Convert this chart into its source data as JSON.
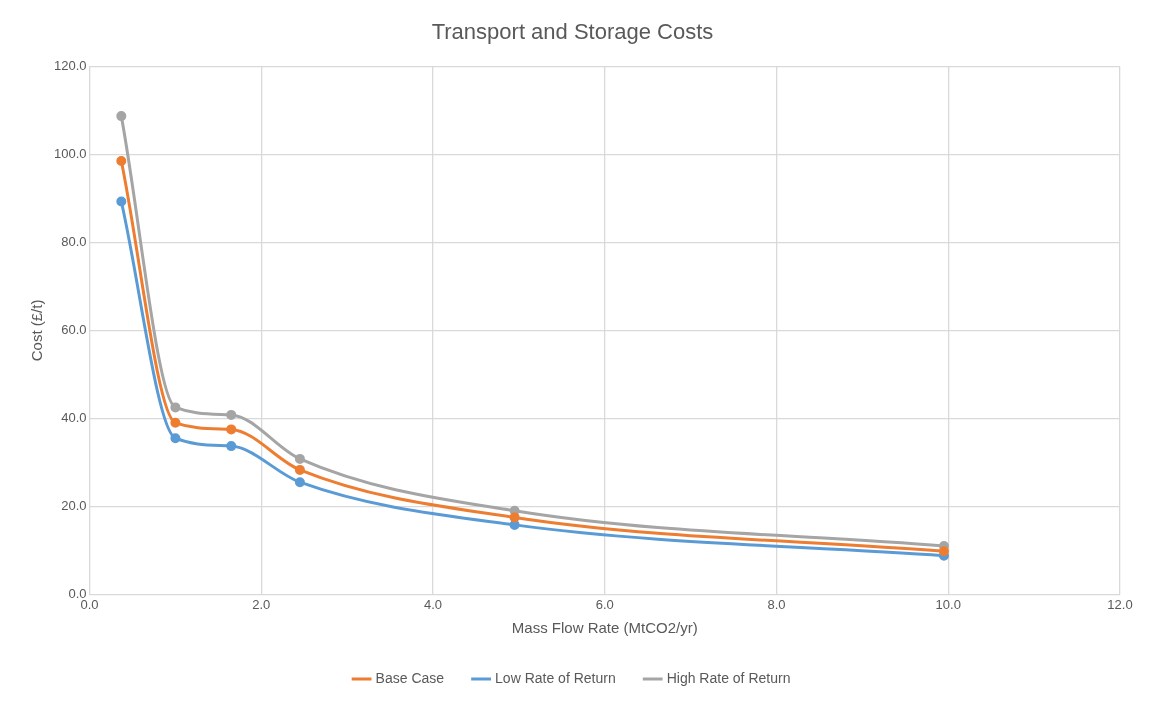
{
  "chart_data": {
    "type": "line",
    "title": "Transport and Storage Costs",
    "xlabel": "Mass Flow Rate (MtCO2/yr)",
    "ylabel": "Cost (£/t)",
    "x": [
      0.37,
      1.0,
      1.65,
      2.45,
      4.95,
      9.95
    ],
    "series": [
      {
        "name": "Base Case",
        "color": "#ed7d31",
        "values": [
          98.5,
          39.0,
          37.5,
          28.3,
          17.5,
          9.8
        ]
      },
      {
        "name": "Low Rate of Return",
        "color": "#5b9bd5",
        "values": [
          89.3,
          35.5,
          33.7,
          25.5,
          15.8,
          8.8
        ]
      },
      {
        "name": "High Rate of Return",
        "color": "#a5a5a5",
        "values": [
          108.7,
          42.5,
          40.8,
          30.8,
          19.0,
          11.0
        ]
      }
    ],
    "xlim": [
      0,
      12
    ],
    "xticks": [
      {
        "value": 0,
        "label": "0.0"
      },
      {
        "value": 2,
        "label": "2.0"
      },
      {
        "value": 4,
        "label": "4.0"
      },
      {
        "value": 6,
        "label": "6.0"
      },
      {
        "value": 8,
        "label": "8.0"
      },
      {
        "value": 10,
        "label": "10.0"
      },
      {
        "value": 12,
        "label": "12.0"
      }
    ],
    "ylim": [
      0,
      120
    ],
    "yticks": [
      {
        "value": 0,
        "label": "0.0"
      },
      {
        "value": 20,
        "label": "20.0"
      },
      {
        "value": 40,
        "label": "40.0"
      },
      {
        "value": 60,
        "label": "60.0"
      },
      {
        "value": 80,
        "label": "80.0"
      },
      {
        "value": 100,
        "label": "100.0"
      },
      {
        "value": 120,
        "label": "120.0"
      }
    ],
    "grid": true,
    "legend": "bottom",
    "marker": "circle",
    "line_style": "solid"
  }
}
